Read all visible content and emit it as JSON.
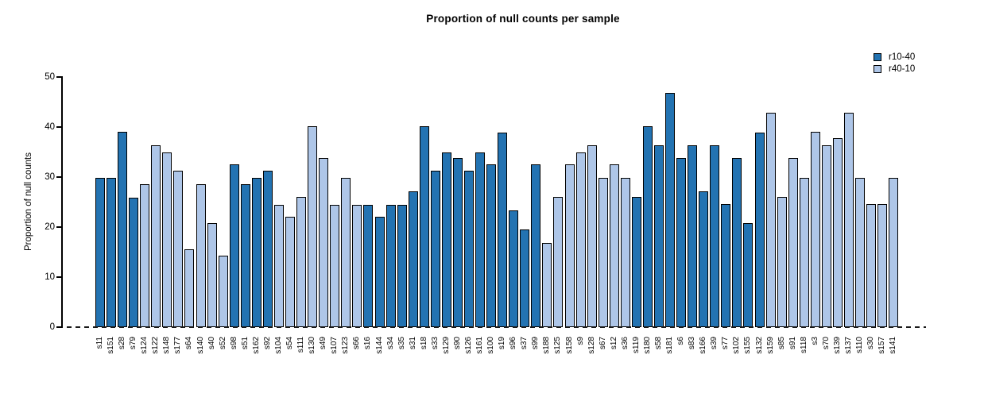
{
  "title": "Proportion of null counts per sample",
  "legend": [
    {
      "label": "r10-40",
      "color": "#2373b2"
    },
    {
      "label": "r40-10",
      "color": "#aec6e8"
    }
  ],
  "y_axis": {
    "label": "Proportion of null counts",
    "ticks": [
      0,
      10,
      20,
      30,
      40,
      50
    ]
  },
  "chart_data": {
    "type": "bar",
    "title": "Proportion of null counts per sample",
    "xlabel": "",
    "ylabel": "Proportion of null counts",
    "ylim": [
      0,
      50
    ],
    "yticks": [
      0,
      10,
      20,
      30,
      40,
      50
    ],
    "grid": false,
    "legend_position": "top-right",
    "zero_line_style": "dashed",
    "series_colors": {
      "r10-40": "#2373b2",
      "r40-10": "#aec6e8"
    },
    "bars": [
      {
        "sample": "s11",
        "group": "r10-40",
        "value": 29.8
      },
      {
        "sample": "s151",
        "group": "r10-40",
        "value": 29.8
      },
      {
        "sample": "s28",
        "group": "r10-40",
        "value": 39.0
      },
      {
        "sample": "s79",
        "group": "r10-40",
        "value": 25.9
      },
      {
        "sample": "s124",
        "group": "r40-10",
        "value": 28.5
      },
      {
        "sample": "s122",
        "group": "r40-10",
        "value": 36.4
      },
      {
        "sample": "s148",
        "group": "r40-10",
        "value": 35.0
      },
      {
        "sample": "s177",
        "group": "r40-10",
        "value": 31.3
      },
      {
        "sample": "s64",
        "group": "r40-10",
        "value": 15.6
      },
      {
        "sample": "s140",
        "group": "r40-10",
        "value": 28.5
      },
      {
        "sample": "s40",
        "group": "r40-10",
        "value": 20.8
      },
      {
        "sample": "s52",
        "group": "r40-10",
        "value": 14.3
      },
      {
        "sample": "s98",
        "group": "r10-40",
        "value": 32.5
      },
      {
        "sample": "s51",
        "group": "r10-40",
        "value": 28.5
      },
      {
        "sample": "s162",
        "group": "r10-40",
        "value": 29.8
      },
      {
        "sample": "s92",
        "group": "r10-40",
        "value": 31.2
      },
      {
        "sample": "s104",
        "group": "r40-10",
        "value": 24.5
      },
      {
        "sample": "s54",
        "group": "r40-10",
        "value": 22.0
      },
      {
        "sample": "s111",
        "group": "r40-10",
        "value": 26.0
      },
      {
        "sample": "s130",
        "group": "r40-10",
        "value": 40.2
      },
      {
        "sample": "s49",
        "group": "r40-10",
        "value": 33.8
      },
      {
        "sample": "s107",
        "group": "r40-10",
        "value": 24.5
      },
      {
        "sample": "s123",
        "group": "r40-10",
        "value": 29.8
      },
      {
        "sample": "s66",
        "group": "r40-10",
        "value": 24.5
      },
      {
        "sample": "s16",
        "group": "r10-40",
        "value": 24.5
      },
      {
        "sample": "s144",
        "group": "r10-40",
        "value": 22.0
      },
      {
        "sample": "s34",
        "group": "r10-40",
        "value": 24.5
      },
      {
        "sample": "s35",
        "group": "r10-40",
        "value": 24.5
      },
      {
        "sample": "s31",
        "group": "r10-40",
        "value": 27.2
      },
      {
        "sample": "s18",
        "group": "r10-40",
        "value": 40.2
      },
      {
        "sample": "s33",
        "group": "r10-40",
        "value": 31.2
      },
      {
        "sample": "s129",
        "group": "r10-40",
        "value": 35.0
      },
      {
        "sample": "s90",
        "group": "r10-40",
        "value": 33.8
      },
      {
        "sample": "s126",
        "group": "r10-40",
        "value": 31.2
      },
      {
        "sample": "s161",
        "group": "r10-40",
        "value": 35.0
      },
      {
        "sample": "s100",
        "group": "r10-40",
        "value": 32.5
      },
      {
        "sample": "s19",
        "group": "r10-40",
        "value": 38.9
      },
      {
        "sample": "s96",
        "group": "r10-40",
        "value": 23.3
      },
      {
        "sample": "s37",
        "group": "r10-40",
        "value": 19.5
      },
      {
        "sample": "s99",
        "group": "r10-40",
        "value": 32.5
      },
      {
        "sample": "s188",
        "group": "r40-10",
        "value": 16.9
      },
      {
        "sample": "s125",
        "group": "r40-10",
        "value": 26.0
      },
      {
        "sample": "s158",
        "group": "r40-10",
        "value": 32.5
      },
      {
        "sample": "s9",
        "group": "r40-10",
        "value": 35.0
      },
      {
        "sample": "s128",
        "group": "r40-10",
        "value": 36.4
      },
      {
        "sample": "s67",
        "group": "r40-10",
        "value": 29.8
      },
      {
        "sample": "s12",
        "group": "r40-10",
        "value": 32.5
      },
      {
        "sample": "s36",
        "group": "r40-10",
        "value": 29.8
      },
      {
        "sample": "s119",
        "group": "r10-40",
        "value": 26.0
      },
      {
        "sample": "s180",
        "group": "r10-40",
        "value": 40.2
      },
      {
        "sample": "s58",
        "group": "r10-40",
        "value": 36.4
      },
      {
        "sample": "s181",
        "group": "r10-40",
        "value": 46.8
      },
      {
        "sample": "s6",
        "group": "r10-40",
        "value": 33.8
      },
      {
        "sample": "s83",
        "group": "r10-40",
        "value": 36.4
      },
      {
        "sample": "s166",
        "group": "r10-40",
        "value": 27.2
      },
      {
        "sample": "s39",
        "group": "r10-40",
        "value": 36.4
      },
      {
        "sample": "s77",
        "group": "r10-40",
        "value": 24.6
      },
      {
        "sample": "s102",
        "group": "r10-40",
        "value": 33.8
      },
      {
        "sample": "s155",
        "group": "r10-40",
        "value": 20.8
      },
      {
        "sample": "s132",
        "group": "r10-40",
        "value": 38.9
      },
      {
        "sample": "s159",
        "group": "r40-10",
        "value": 42.8
      },
      {
        "sample": "s85",
        "group": "r40-10",
        "value": 26.0
      },
      {
        "sample": "s91",
        "group": "r40-10",
        "value": 33.8
      },
      {
        "sample": "s118",
        "group": "r40-10",
        "value": 29.8
      },
      {
        "sample": "s3",
        "group": "r40-10",
        "value": 39.0
      },
      {
        "sample": "s70",
        "group": "r40-10",
        "value": 36.4
      },
      {
        "sample": "s139",
        "group": "r40-10",
        "value": 37.7
      },
      {
        "sample": "s137",
        "group": "r40-10",
        "value": 42.8
      },
      {
        "sample": "s110",
        "group": "r40-10",
        "value": 29.8
      },
      {
        "sample": "s30",
        "group": "r40-10",
        "value": 24.6
      },
      {
        "sample": "s157",
        "group": "r40-10",
        "value": 24.6
      },
      {
        "sample": "s141",
        "group": "r40-10",
        "value": 29.8
      }
    ]
  }
}
